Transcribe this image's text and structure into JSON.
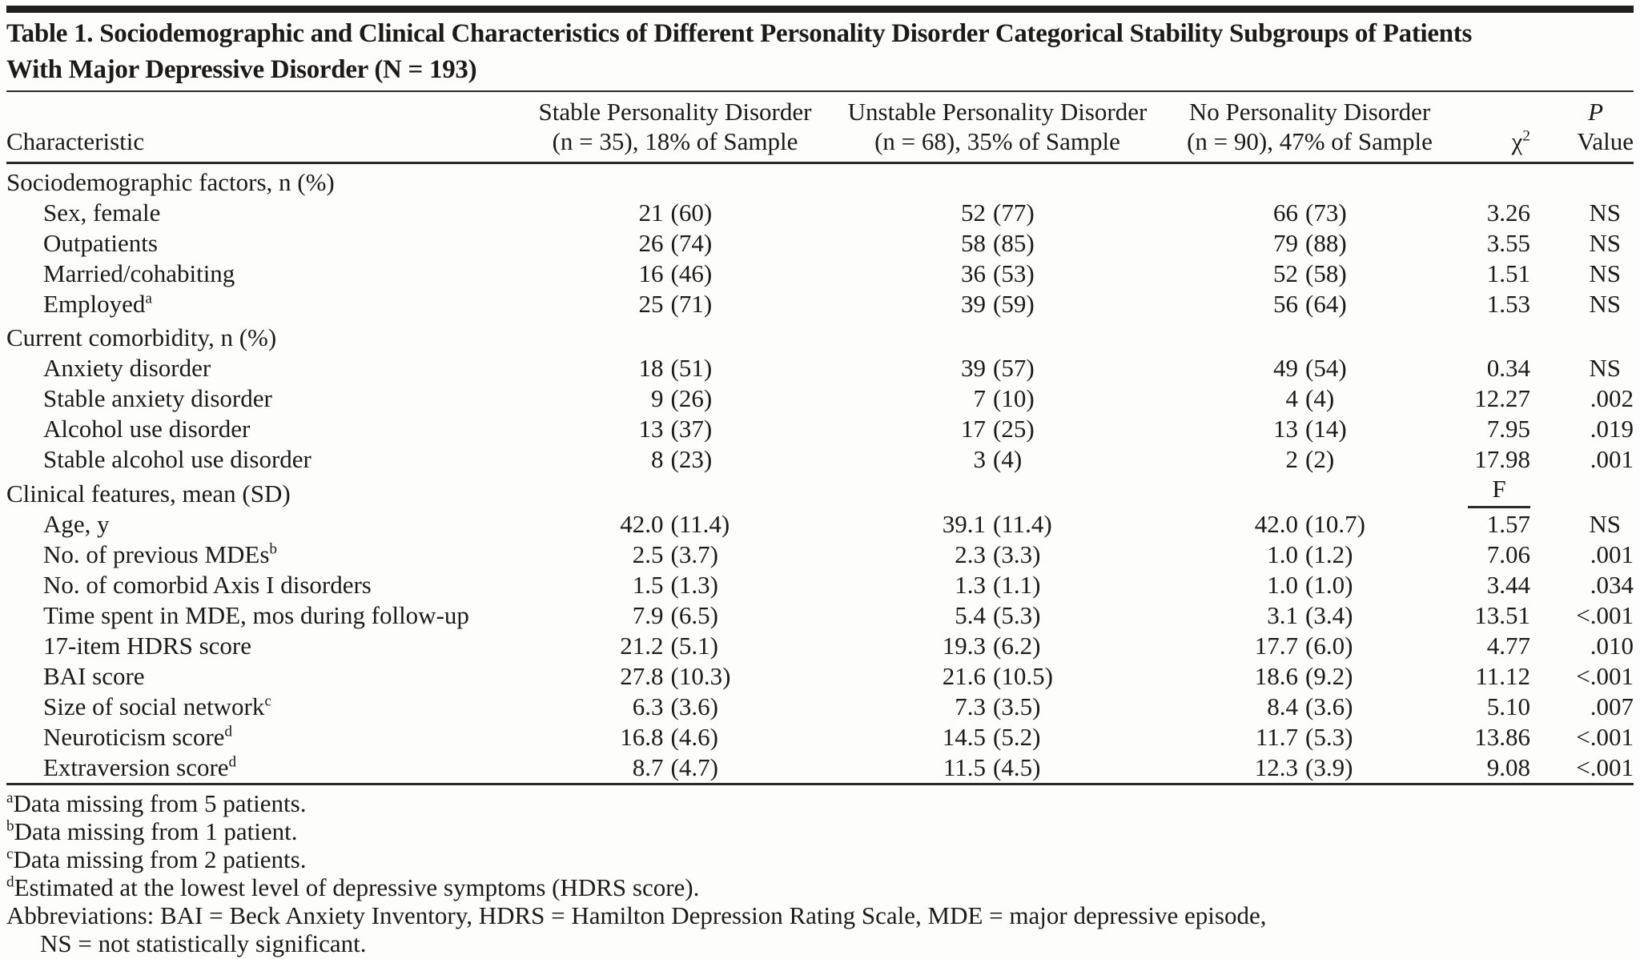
{
  "table": {
    "title_line1": "Table 1. Sociodemographic and Clinical Characteristics of Different Personality Disorder Categorical Stability Subgroups of Patients",
    "title_line2": "With Major Depressive Disorder (N = 193)",
    "columns": {
      "characteristic": "Characteristic",
      "stable": {
        "line1": "Stable Personality Disorder",
        "line2": "(n = 35), 18% of Sample"
      },
      "unstable": {
        "line1": "Unstable Personality Disorder",
        "line2": "(n = 68), 35% of Sample"
      },
      "no_pd": {
        "line1": "No Personality Disorder",
        "line2": "(n = 90), 47% of Sample"
      },
      "chi_square": {
        "base": "χ",
        "sup": "2"
      },
      "p_value": {
        "line1": "P",
        "line2": "Value"
      }
    },
    "sections": [
      {
        "header": "Sociodemographic factors, n (%)",
        "stat_header": "",
        "rows": [
          {
            "label": "Sex, female",
            "sup": "",
            "values": [
              "21 (60)",
              "52 (77)",
              "66 (73)"
            ],
            "stat": "3.26",
            "p": "NS"
          },
          {
            "label": "Outpatients",
            "sup": "",
            "values": [
              "26 (74)",
              "58 (85)",
              "79 (88)"
            ],
            "stat": "3.55",
            "p": "NS"
          },
          {
            "label": "Married/cohabiting",
            "sup": "",
            "values": [
              "16 (46)",
              "36 (53)",
              "52 (58)"
            ],
            "stat": "1.51",
            "p": "NS"
          },
          {
            "label": "Employed",
            "sup": "a",
            "values": [
              "25 (71)",
              "39 (59)",
              "56 (64)"
            ],
            "stat": "1.53",
            "p": "NS"
          }
        ]
      },
      {
        "header": "Current comorbidity, n (%)",
        "stat_header": "",
        "rows": [
          {
            "label": "Anxiety disorder",
            "sup": "",
            "values": [
              "18 (51)",
              "39 (57)",
              "49 (54)"
            ],
            "stat": "0.34",
            "p": "NS"
          },
          {
            "label": "Stable anxiety disorder",
            "sup": "",
            "values": [
              "9 (26)",
              "7 (10)",
              "4 (4)"
            ],
            "stat": "12.27",
            "p": ".002"
          },
          {
            "label": "Alcohol use disorder",
            "sup": "",
            "values": [
              "13 (37)",
              "17 (25)",
              "13 (14)"
            ],
            "stat": "7.95",
            "p": ".019"
          },
          {
            "label": "Stable alcohol use disorder",
            "sup": "",
            "values": [
              "8 (23)",
              "3 (4)",
              "2 (2)"
            ],
            "stat": "17.98",
            "p": ".001"
          }
        ]
      },
      {
        "header": "Clinical features, mean (SD)",
        "stat_header": "F",
        "rows": [
          {
            "label": "Age, y",
            "sup": "",
            "values": [
              "42.0 (11.4)",
              "39.1 (11.4)",
              "42.0 (10.7)"
            ],
            "stat": "1.57",
            "p": "NS"
          },
          {
            "label": "No. of previous MDEs",
            "sup": "b",
            "values": [
              "2.5 (3.7)",
              "2.3 (3.3)",
              "1.0 (1.2)"
            ],
            "stat": "7.06",
            "p": ".001"
          },
          {
            "label": "No. of comorbid Axis I disorders",
            "sup": "",
            "values": [
              "1.5 (1.3)",
              "1.3 (1.1)",
              "1.0 (1.0)"
            ],
            "stat": "3.44",
            "p": ".034"
          },
          {
            "label": "Time spent in MDE, mos during follow-up",
            "sup": "",
            "values": [
              "7.9 (6.5)",
              "5.4 (5.3)",
              "3.1 (3.4)"
            ],
            "stat": "13.51",
            "p": "<.001"
          },
          {
            "label": "17-item HDRS score",
            "sup": "",
            "values": [
              "21.2 (5.1)",
              "19.3 (6.2)",
              "17.7 (6.0)"
            ],
            "stat": "4.77",
            "p": ".010"
          },
          {
            "label": "BAI score",
            "sup": "",
            "values": [
              "27.8 (10.3)",
              "21.6 (10.5)",
              "18.6 (9.2)"
            ],
            "stat": "11.12",
            "p": "<.001"
          },
          {
            "label": "Size of social network",
            "sup": "c",
            "values": [
              "6.3 (3.6)",
              "7.3 (3.5)",
              "8.4 (3.6)"
            ],
            "stat": "5.10",
            "p": ".007"
          },
          {
            "label": "Neuroticism score",
            "sup": "d",
            "values": [
              "16.8 (4.6)",
              "14.5 (5.2)",
              "11.7 (5.3)"
            ],
            "stat": "13.86",
            "p": "<.001"
          },
          {
            "label": "Extraversion score",
            "sup": "d",
            "values": [
              "8.7 (4.7)",
              "11.5 (4.5)",
              "12.3 (3.9)"
            ],
            "stat": "9.08",
            "p": "<.001"
          }
        ]
      }
    ],
    "footnotes": [
      {
        "sup": "a",
        "text": "Data missing from 5 patients."
      },
      {
        "sup": "b",
        "text": "Data missing from 1 patient."
      },
      {
        "sup": "c",
        "text": "Data missing from 2 patients."
      },
      {
        "sup": "d",
        "text": "Estimated at the lowest level of depressive symptoms (HDRS score)."
      }
    ],
    "abbreviations": {
      "line1": "Abbreviations: BAI = Beck Anxiety Inventory, HDRS = Hamilton Depression Rating Scale, MDE = major depressive episode,",
      "line2": "NS = not statistically significant."
    }
  }
}
